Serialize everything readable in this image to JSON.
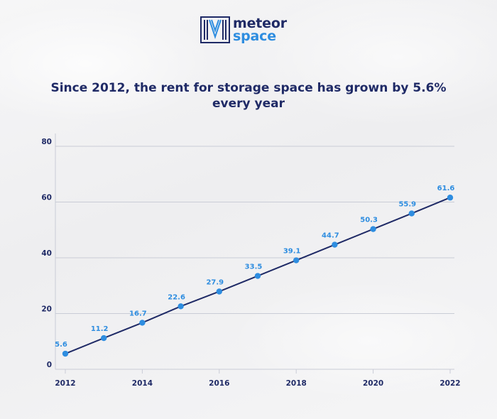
{
  "brand": {
    "line1": "meteor",
    "line2": "space",
    "colors": {
      "navy": "#1f2a66",
      "blue": "#2e8de0"
    }
  },
  "chart_data": {
    "type": "line",
    "title": "Since 2012, the rent for storage space has grown by 5.6% every year",
    "x": [
      2012,
      2013,
      2014,
      2015,
      2016,
      2017,
      2018,
      2019,
      2020,
      2021,
      2022
    ],
    "series": [
      {
        "values": [
          5.6,
          11.2,
          16.7,
          22.6,
          27.9,
          33.5,
          39.1,
          44.7,
          50.3,
          55.9,
          61.6
        ]
      }
    ],
    "data_labels": [
      "5.6",
      "11.2",
      "16.7",
      "22.6",
      "27.9",
      "33.5",
      "39.1",
      "44.7",
      "50.3",
      "55.9",
      "61.6"
    ],
    "x_ticks": [
      "2012",
      "2014",
      "2016",
      "2018",
      "2020",
      "2022"
    ],
    "y_ticks": [
      "0",
      "20",
      "40",
      "60",
      "80"
    ],
    "xlim": [
      2012,
      2022
    ],
    "ylim": [
      0,
      80
    ],
    "grid": "horizontal",
    "line_color": "#1f2a66",
    "point_color": "#2e8de0",
    "label_color": "#2e8de0"
  }
}
